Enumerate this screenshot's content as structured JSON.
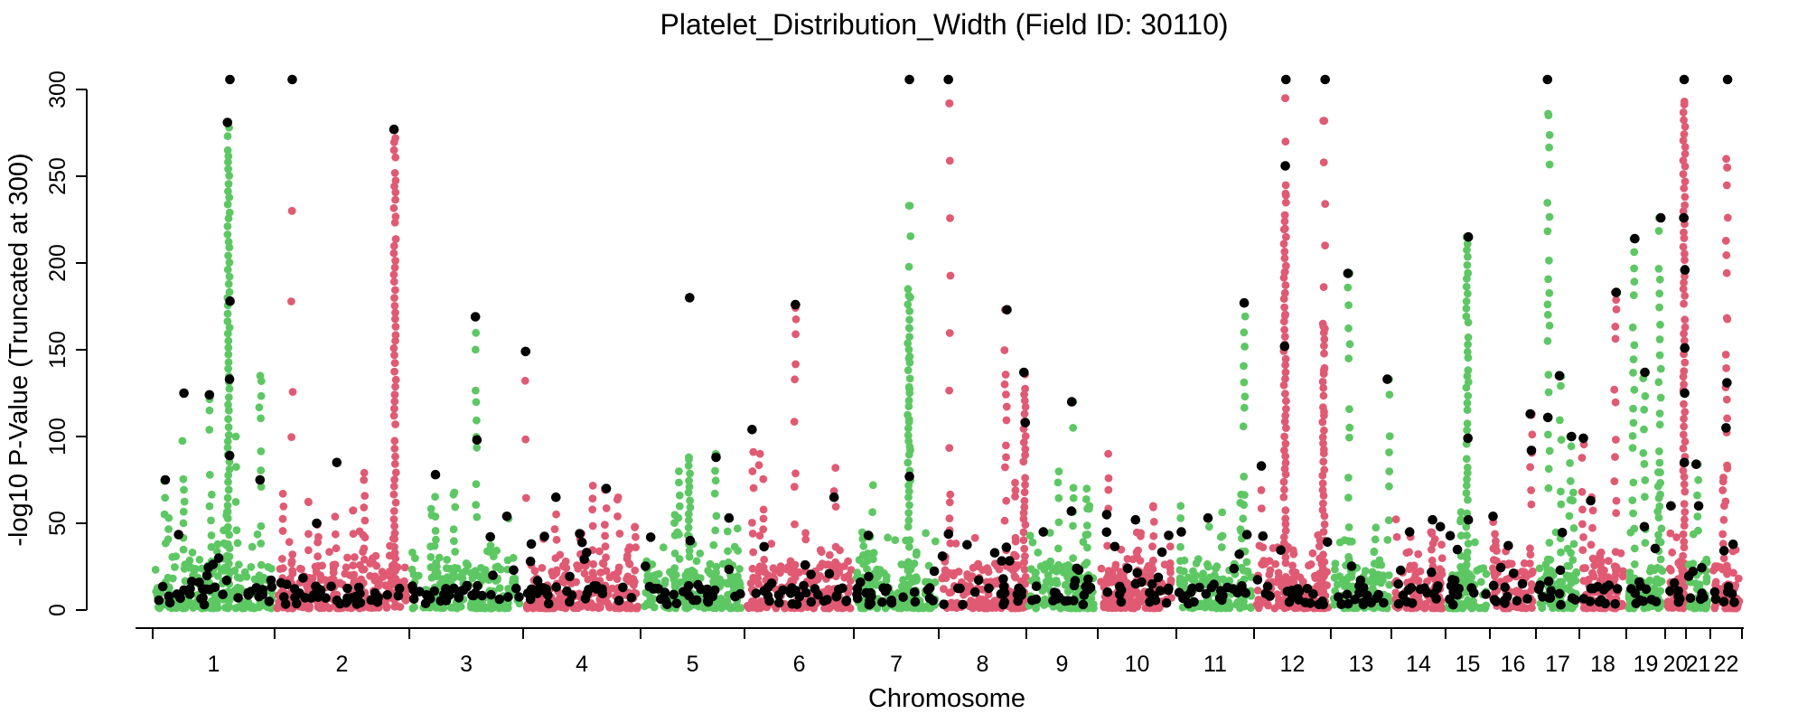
{
  "figure": {
    "background": "#ffffff"
  },
  "chart_data": {
    "type": "scatter",
    "subtype": "manhattan",
    "title": "Platelet_Distribution_Width (Field ID: 30110)",
    "xlabel": "Chromosome",
    "ylabel": "-log10 P-Value (Truncated at 300)",
    "ylim": [
      0,
      300
    ],
    "y_ticks": [
      0,
      50,
      100,
      150,
      200,
      250,
      300
    ],
    "truncation_cap": 300,
    "grid": "off",
    "legend": "none",
    "colors": {
      "green": "#5dc863",
      "pink": "#e05a73",
      "lead": "#000000",
      "axis": "#000000"
    },
    "chromosome_boundaries": [
      0,
      0.0767,
      0.1615,
      0.2331,
      0.307,
      0.3724,
      0.4412,
      0.4946,
      0.5497,
      0.5947,
      0.6441,
      0.693,
      0.7413,
      0.7794,
      0.8135,
      0.8414,
      0.8704,
      0.8977,
      0.9272,
      0.9517,
      0.9648,
      0.9801,
      1.0
    ],
    "chromosomes": [
      {
        "label": "1",
        "color": "green",
        "towers": [
          [
            0.008,
            75,
            1,
            [
              75
            ]
          ],
          [
            0.0193,
            125,
            1,
            [
              125
            ]
          ],
          [
            0.0364,
            124,
            1,
            [
              124
            ]
          ],
          [
            0.0478,
            278,
            2,
            [
              300,
              281,
              178,
              133,
              89
            ]
          ],
          [
            0.0529,
            100,
            1,
            []
          ],
          [
            0.0677,
            135,
            1,
            [
              75
            ]
          ]
        ]
      },
      {
        "label": "2",
        "color": "pink",
        "towers": [
          [
            0.0876,
            230,
            0,
            [
              300
            ]
          ],
          [
            0.104,
            50,
            1,
            [
              50
            ]
          ],
          [
            0.1154,
            85,
            1,
            [
              85
            ]
          ],
          [
            0.1524,
            272,
            2,
            [
              277
            ]
          ]
        ]
      },
      {
        "label": "3",
        "color": "green",
        "towers": [
          [
            0.178,
            78,
            1,
            [
              78
            ]
          ],
          [
            0.2035,
            169,
            1,
            [
              169,
              98
            ]
          ],
          [
            0.2234,
            54,
            1,
            [
              54
            ]
          ]
        ]
      },
      {
        "label": "4",
        "color": "pink",
        "towers": [
          [
            0.2348,
            149,
            0,
            [
              149
            ]
          ],
          [
            0.2536,
            65,
            1,
            [
              65
            ]
          ],
          [
            0.2695,
            44,
            1,
            [
              44
            ]
          ],
          [
            0.2848,
            70,
            1,
            [
              70
            ]
          ]
        ]
      },
      {
        "label": "5",
        "color": "green",
        "towers": [
          [
            0.3138,
            42,
            1,
            [
              42
            ]
          ],
          [
            0.3371,
            180,
            3,
            [
              180
            ]
          ],
          [
            0.3375,
            88,
            2,
            []
          ],
          [
            0.3542,
            90,
            1,
            [
              88
            ]
          ],
          [
            0.3621,
            53,
            1,
            [
              53
            ]
          ]
        ]
      },
      {
        "label": "6",
        "color": "pink",
        "towers": [
          [
            0.3775,
            104,
            1,
            [
              104
            ]
          ],
          [
            0.382,
            90,
            1,
            []
          ],
          [
            0.4042,
            176,
            1,
            [
              176
            ]
          ],
          [
            0.4292,
            82,
            1,
            [
              65
            ]
          ]
        ]
      },
      {
        "label": "7",
        "color": "green",
        "towers": [
          [
            0.4508,
            43,
            1,
            [
              43
            ]
          ],
          [
            0.4764,
            233,
            0,
            [
              300
            ]
          ],
          [
            0.4758,
            185,
            2,
            [
              77
            ]
          ]
        ]
      },
      {
        "label": "8",
        "color": "pink",
        "towers": [
          [
            0.5014,
            292,
            0,
            [
              300
            ]
          ],
          [
            0.5367,
            173,
            1,
            [
              173
            ]
          ],
          [
            0.5486,
            137,
            2,
            [
              137,
              108
            ]
          ]
        ]
      },
      {
        "label": "9",
        "color": "green",
        "towers": [
          [
            0.5606,
            45,
            1,
            [
              45
            ]
          ],
          [
            0.5787,
            120,
            1,
            [
              120,
              57
            ]
          ],
          [
            0.589,
            60,
            1,
            []
          ]
        ]
      },
      {
        "label": "10",
        "color": "pink",
        "towers": [
          [
            0.6009,
            90,
            1,
            [
              55
            ]
          ],
          [
            0.6191,
            52,
            1,
            [
              52
            ]
          ],
          [
            0.6401,
            43,
            1,
            [
              43
            ]
          ]
        ]
      },
      {
        "label": "11",
        "color": "green",
        "towers": [
          [
            0.647,
            60,
            1,
            [
              45
            ]
          ],
          [
            0.6646,
            53,
            1,
            [
              53
            ]
          ],
          [
            0.6868,
            177,
            1,
            [
              177
            ]
          ]
        ]
      },
      {
        "label": "12",
        "color": "pink",
        "towers": [
          [
            0.6981,
            83,
            1,
            [
              83
            ]
          ],
          [
            0.7124,
            240,
            2,
            [
              256,
              152
            ]
          ],
          [
            0.7127,
            295,
            0,
            [
              300
            ]
          ],
          [
            0.7368,
            165,
            2,
            []
          ],
          [
            0.7372,
            282,
            0,
            [
              300
            ]
          ]
        ]
      },
      {
        "label": "13",
        "color": "green",
        "towers": [
          [
            0.7527,
            194,
            1,
            [
              194
            ]
          ],
          [
            0.7777,
            133,
            1,
            [
              133
            ]
          ]
        ]
      },
      {
        "label": "14",
        "color": "pink",
        "towers": [
          [
            0.7908,
            45,
            1,
            [
              45
            ]
          ],
          [
            0.805,
            52,
            1,
            [
              52
            ]
          ],
          [
            0.8107,
            48,
            1,
            [
              48
            ]
          ]
        ]
      },
      {
        "label": "15",
        "color": "green",
        "towers": [
          [
            0.8272,
            215,
            2,
            [
              215,
              99,
              52
            ]
          ]
        ]
      },
      {
        "label": "16",
        "color": "pink",
        "towers": [
          [
            0.8442,
            54,
            1,
            [
              54
            ]
          ],
          [
            0.8675,
            113,
            1,
            [
              113,
              92
            ]
          ]
        ]
      },
      {
        "label": "17",
        "color": "green",
        "towers": [
          [
            0.8783,
            286,
            1,
            [
              300,
              111
            ]
          ],
          [
            0.8857,
            135,
            1,
            [
              135
            ]
          ],
          [
            0.892,
            100,
            1,
            [
              100
            ]
          ]
        ]
      },
      {
        "label": "18",
        "color": "pink",
        "towers": [
          [
            0.9,
            99,
            1,
            [
              99
            ]
          ],
          [
            0.9056,
            65,
            1,
            [
              63
            ]
          ],
          [
            0.9204,
            183,
            1,
            [
              183
            ]
          ]
        ]
      },
      {
        "label": "19",
        "color": "green",
        "towers": [
          [
            0.9318,
            214,
            1,
            [
              214
            ]
          ],
          [
            0.9386,
            137,
            1,
            [
              137,
              48
            ]
          ],
          [
            0.9483,
            226,
            1,
            [
              226
            ]
          ]
        ]
      },
      {
        "label": "20",
        "color": "pink",
        "towers": [
          [
            0.9557,
            60,
            1,
            [
              60
            ]
          ],
          [
            0.9636,
            293,
            2,
            [
              300,
              226,
              196,
              151,
              125,
              85
            ]
          ]
        ]
      },
      {
        "label": "21",
        "color": "green",
        "towers": [
          [
            0.972,
            84,
            1,
            [
              84,
              60
            ]
          ]
        ]
      },
      {
        "label": "22",
        "color": "pink",
        "towers": [
          [
            0.9903,
            260,
            1,
            [
              131,
              105
            ]
          ],
          [
            0.9906,
            255,
            0,
            [
              300
            ]
          ]
        ]
      }
    ]
  }
}
